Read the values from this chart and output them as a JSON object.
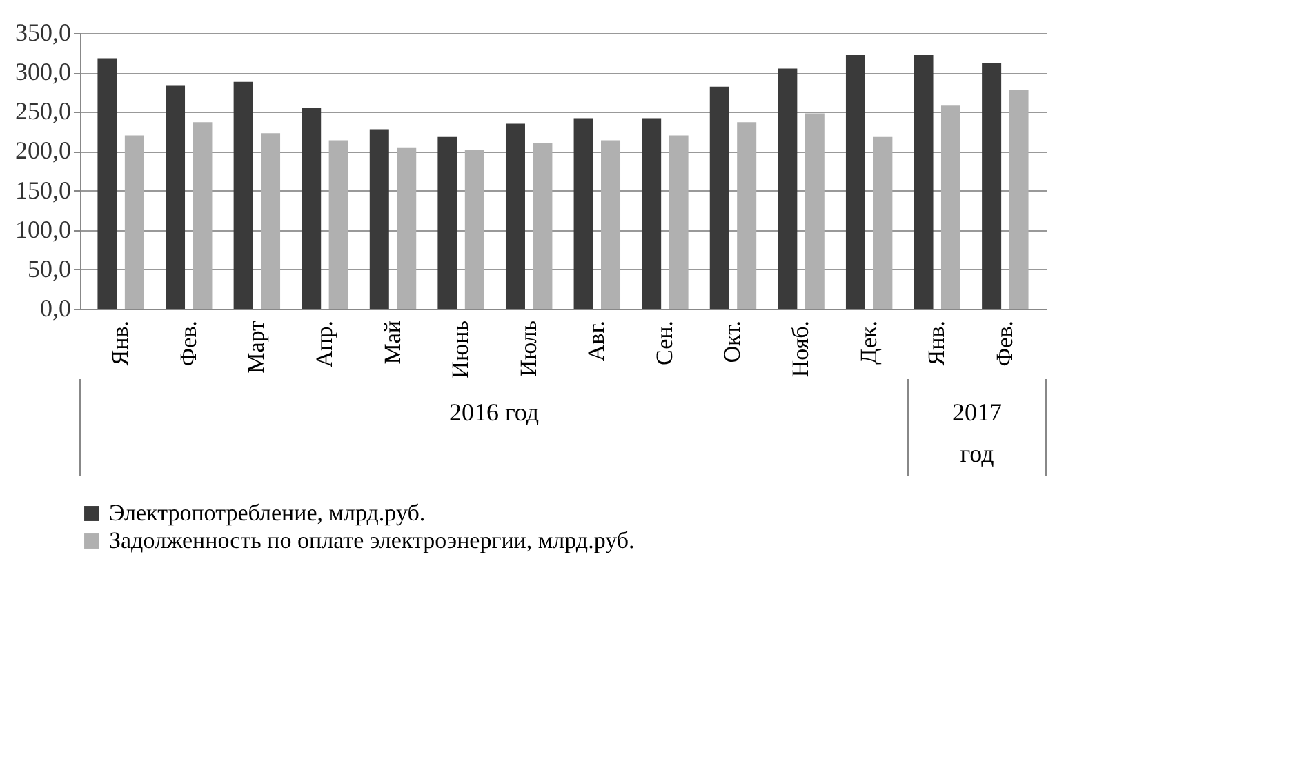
{
  "chart_data": {
    "type": "bar",
    "categories": [
      "Янв.",
      "Фев.",
      "Март",
      "Апр.",
      "Май",
      "Июнь",
      "Июль",
      "Авг.",
      "Сен.",
      "Окт.",
      "Нояб.",
      "Дек.",
      "Янв.",
      "Фев."
    ],
    "series": [
      {
        "name": "Электропотребление, млрд.руб.",
        "color": "#3a3a3a",
        "values": [
          318,
          283,
          288,
          255,
          228,
          218,
          235,
          242,
          242,
          282,
          305,
          322,
          322,
          312
        ]
      },
      {
        "name": "Задолженность по оплате электроэнергии, млрд.руб.",
        "color": "#b0b0b0",
        "values": [
          220,
          237,
          223,
          214,
          205,
          202,
          210,
          214,
          220,
          237,
          248,
          218,
          258,
          278
        ]
      }
    ],
    "ylim": [
      0,
      350
    ],
    "yticks": [
      {
        "value": 0,
        "label": "0,0"
      },
      {
        "value": 50,
        "label": "50,0"
      },
      {
        "value": 100,
        "label": "100,0"
      },
      {
        "value": 150,
        "label": "150,0"
      },
      {
        "value": 200,
        "label": "200,0"
      },
      {
        "value": 250,
        "label": "250,0"
      },
      {
        "value": 300,
        "label": "300,0"
      },
      {
        "value": 350,
        "label": "350,0"
      }
    ],
    "annotations": [
      "2016 год",
      "2017 год"
    ],
    "grid": "y",
    "legend": "bottom left"
  }
}
